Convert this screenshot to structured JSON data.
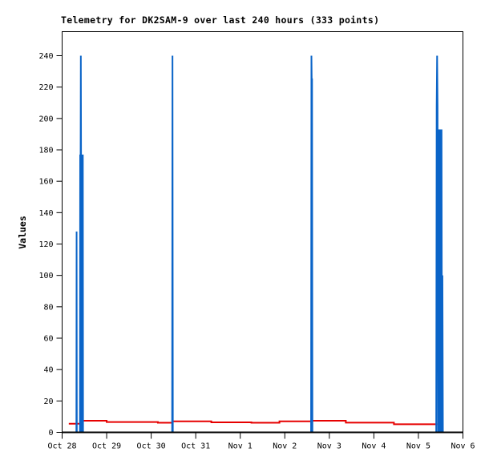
{
  "page": {
    "background_color": "#ffffff",
    "text_color": "#000000"
  },
  "chart_data": {
    "type": "line",
    "title": "Telemetry for DK2SAM-9 over last 240 hours (333 points)",
    "xlabel": "",
    "ylabel": "Values",
    "grid": false,
    "legend": "none",
    "x_axis": {
      "tick_labels": [
        "Oct 28",
        "Oct 29",
        "Oct 30",
        "Oct 31",
        "Nov 1",
        "Nov 2",
        "Nov 3",
        "Nov 4",
        "Nov 5",
        "Nov 6"
      ],
      "range_days": [
        0,
        9
      ]
    },
    "y_axis": {
      "ticks": [
        0,
        20,
        40,
        60,
        80,
        100,
        120,
        140,
        160,
        180,
        200,
        220,
        240
      ],
      "min": 0,
      "max": 240
    },
    "colors": {
      "blue_series": "#0a64c8",
      "red_series": "#e60000",
      "border": "#000000",
      "background": "#ffffff"
    },
    "notable_spikes": [
      {
        "near": "Oct 28",
        "x_day": 0.33,
        "peaks": [
          128,
          177,
          240
        ]
      },
      {
        "near": "Oct 30",
        "x_day": 2.48,
        "peaks": [
          240
        ]
      },
      {
        "near": "Nov 2",
        "x_day": 5.6,
        "peaks": [
          225,
          240
        ]
      },
      {
        "near": "Nov 5",
        "x_day": 8.45,
        "peaks": [
          208,
          240,
          193
        ],
        "dip": 65
      }
    ],
    "series": [
      {
        "name": "blue-series",
        "color_key": "blue_series",
        "style": "spikes-on-zero-baseline",
        "points": [
          [
            0.15,
            0
          ],
          [
            0.32,
            0
          ],
          [
            0.325,
            128
          ],
          [
            0.33,
            0
          ],
          [
            0.4,
            0
          ],
          [
            0.405,
            177
          ],
          [
            0.41,
            0
          ],
          [
            0.415,
            177
          ],
          [
            0.42,
            240
          ],
          [
            0.425,
            177
          ],
          [
            0.43,
            0
          ],
          [
            0.435,
            177
          ],
          [
            0.44,
            0
          ],
          [
            0.445,
            177
          ],
          [
            0.45,
            0
          ],
          [
            0.455,
            177
          ],
          [
            0.46,
            0
          ],
          [
            0.465,
            177
          ],
          [
            0.47,
            0
          ],
          [
            2.47,
            0
          ],
          [
            2.478,
            240
          ],
          [
            2.486,
            0
          ],
          [
            5.59,
            0
          ],
          [
            5.598,
            240
          ],
          [
            5.604,
            225
          ],
          [
            5.612,
            225
          ],
          [
            5.62,
            0
          ],
          [
            8.4,
            0
          ],
          [
            8.41,
            208
          ],
          [
            8.42,
            240
          ],
          [
            8.43,
            208
          ],
          [
            8.44,
            0
          ],
          [
            8.45,
            193
          ],
          [
            8.46,
            0
          ],
          [
            8.47,
            193
          ],
          [
            8.475,
            65
          ],
          [
            8.48,
            193
          ],
          [
            8.49,
            0
          ],
          [
            8.5,
            193
          ],
          [
            8.51,
            0
          ],
          [
            8.52,
            193
          ],
          [
            8.53,
            0
          ],
          [
            8.54,
            100
          ],
          [
            8.55,
            0
          ],
          [
            8.58,
            0
          ]
        ]
      },
      {
        "name": "red-series",
        "color_key": "red_series",
        "style": "step-line",
        "points": [
          [
            0.15,
            5.5
          ],
          [
            0.44,
            5.5
          ],
          [
            0.44,
            7.4
          ],
          [
            1.0,
            7.4
          ],
          [
            1.0,
            6.6
          ],
          [
            2.15,
            6.6
          ],
          [
            2.15,
            6.1
          ],
          [
            2.48,
            6.1
          ],
          [
            2.48,
            7.0
          ],
          [
            3.35,
            7.0
          ],
          [
            3.35,
            6.4
          ],
          [
            4.25,
            6.4
          ],
          [
            4.25,
            6.1
          ],
          [
            4.88,
            6.1
          ],
          [
            4.88,
            7.0
          ],
          [
            5.6,
            7.0
          ],
          [
            5.6,
            7.4
          ],
          [
            6.37,
            7.4
          ],
          [
            6.37,
            6.2
          ],
          [
            7.45,
            6.2
          ],
          [
            7.45,
            5.2
          ],
          [
            8.42,
            5.2
          ]
        ]
      }
    ]
  }
}
